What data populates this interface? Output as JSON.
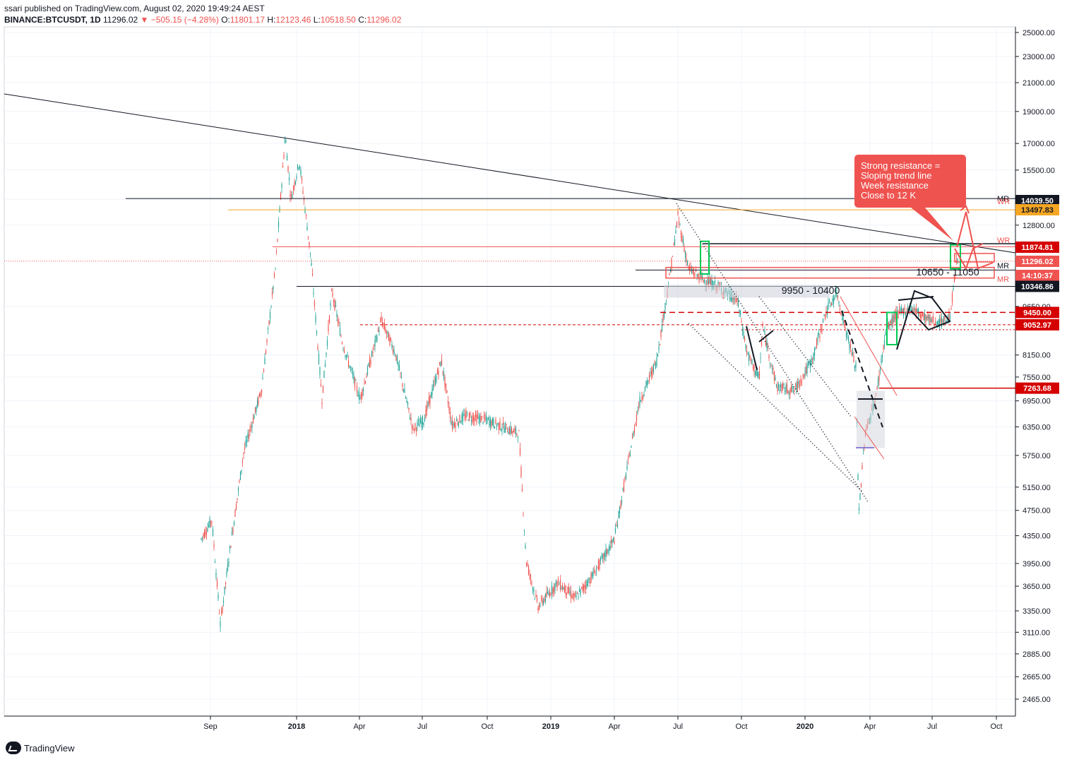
{
  "header": {
    "line1": "ssari published on TradingView.com, August 02, 2020 19:49:24 AEST",
    "symbol": "BINANCE:BTCUSDT, 1D",
    "last": "11296.02",
    "change": "−505.15 (−4.28%)",
    "o_label": "O:",
    "o_value": "11801.17",
    "h_label": "H:",
    "h_value": "12123.46",
    "l_label": "L:",
    "l_value": "10518.50",
    "c_label": "C:",
    "c_value": "11296.02"
  },
  "brand": {
    "name": "TradingView",
    "icon": "tradingview-logo-icon"
  },
  "chart_data": {
    "type": "candlestick",
    "y_scale": "log",
    "y_axis_ticks": [
      "25000.00",
      "23000.00",
      "21000.00",
      "19000.00",
      "17000.00",
      "15500.00",
      "14000.00",
      "12800.00",
      "9650.00",
      "8150.00",
      "7550.00",
      "6950.00",
      "6350.00",
      "5750.00",
      "5150.00",
      "4750.00",
      "4350.00",
      "3950.00",
      "3650.00",
      "3350.00",
      "3110.00",
      "2885.00",
      "2665.00",
      "2465.00"
    ],
    "x_axis_ticks": [
      {
        "label": "Sep",
        "bold": false
      },
      {
        "label": "2018",
        "bold": true
      },
      {
        "label": "Apr",
        "bold": false
      },
      {
        "label": "Jul",
        "bold": false
      },
      {
        "label": "Oct",
        "bold": false
      },
      {
        "label": "2019",
        "bold": true
      },
      {
        "label": "Apr",
        "bold": false
      },
      {
        "label": "Jul",
        "bold": false
      },
      {
        "label": "Oct",
        "bold": false
      },
      {
        "label": "2020",
        "bold": true
      },
      {
        "label": "Apr",
        "bold": false
      },
      {
        "label": "Jul",
        "bold": false
      },
      {
        "label": "Oct",
        "bold": false
      }
    ],
    "price_tags": [
      {
        "label": "14039.50",
        "price": 14039.5,
        "bg": "#131722",
        "fg": "#ffffff"
      },
      {
        "label": "13497.83",
        "price": 13497.83,
        "bg": "#f5a623",
        "fg": "#131722"
      },
      {
        "label": "11874.81",
        "price": 11874.81,
        "bg": "#d50000",
        "fg": "#ffffff"
      },
      {
        "label": "11296.02",
        "price": 11296.02,
        "bg": "#ef5350",
        "fg": "#ffffff"
      },
      {
        "label": "14:10:37",
        "price": 10950,
        "bg": "#ef5350",
        "fg": "#ffffff"
      },
      {
        "label": "10346.86",
        "price": 10346.86,
        "bg": "#131722",
        "fg": "#ffffff"
      },
      {
        "label": "9450.00",
        "price": 9450,
        "bg": "#d50000",
        "fg": "#ffffff"
      },
      {
        "label": "9052.97",
        "price": 9052.97,
        "bg": "#d50000",
        "fg": "#ffffff"
      },
      {
        "label": "7263.68",
        "price": 7263.68,
        "bg": "#d50000",
        "fg": "#ffffff"
      }
    ],
    "level_labels": [
      "MR",
      "WR",
      "WR",
      "MR",
      "MR"
    ],
    "zone_labels": [
      "9950 - 10400",
      "10650 - 11050"
    ],
    "annotation": {
      "lines": [
        "Strong resistance =",
        "Sloping trend line",
        "Week resistance",
        "Close to 12 K"
      ],
      "bg": "#ef5350"
    },
    "colors": {
      "up": "#26a69a",
      "down": "#ef5350"
    }
  }
}
